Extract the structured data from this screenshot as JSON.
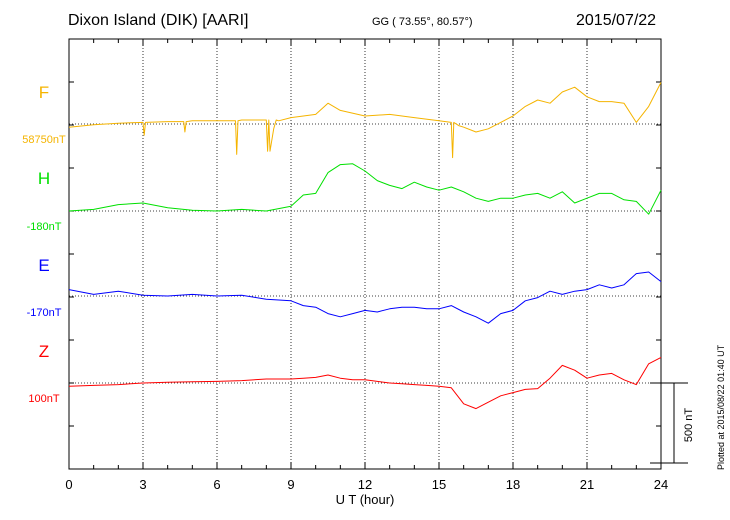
{
  "header": {
    "station": "Dixon Island (DIK)  [AARI]",
    "coords": "GG ( 73.55°,  80.57°)",
    "date": "2015/07/22"
  },
  "plotted_note": "Plotted at 2015/08/22 01:40 UT",
  "colors": {
    "F": "#f5b400",
    "H": "#00e000",
    "E": "#0000ff",
    "Z": "#ff0000",
    "axis": "#000000"
  },
  "chart_data": {
    "type": "line",
    "title": "",
    "xlabel": "U T (hour)",
    "ylabel": "",
    "xlim": [
      0,
      24
    ],
    "x_ticks": [
      "0",
      "3",
      "6",
      "9",
      "12",
      "15",
      "18",
      "21",
      "24"
    ],
    "scale_bar": {
      "label": "500 nT",
      "value_nT": 500
    },
    "series": [
      {
        "name": "F",
        "baseline_label": "58750nT",
        "baseline_nT": 58750,
        "x": [
          0,
          1,
          2,
          3,
          3.05,
          3.1,
          4,
          4.65,
          4.7,
          4.75,
          5,
          6,
          6.75,
          6.8,
          6.85,
          7,
          8,
          8.05,
          8.1,
          8.15,
          8.3,
          8.4,
          8.5,
          9,
          10,
          10.5,
          11,
          12,
          13,
          14,
          15,
          15.5,
          15.55,
          15.6,
          15.8,
          16,
          16.5,
          17,
          17.5,
          18,
          18.5,
          19,
          19.5,
          20,
          20.5,
          21,
          21.5,
          22,
          22.5,
          23,
          23.5,
          24
        ],
        "y": [
          58730,
          58745,
          58755,
          58760,
          58680,
          58760,
          58765,
          58765,
          58700,
          58765,
          58770,
          58770,
          58770,
          58560,
          58770,
          58775,
          58775,
          58580,
          58775,
          58580,
          58720,
          58775,
          58770,
          58790,
          58810,
          58880,
          58835,
          58800,
          58810,
          58790,
          58770,
          58760,
          58540,
          58760,
          58740,
          58730,
          58700,
          58720,
          58760,
          58800,
          58860,
          58900,
          58880,
          58950,
          58980,
          58920,
          58890,
          58890,
          58880,
          58760,
          58860,
          59010
        ]
      },
      {
        "name": "H",
        "baseline_label": "-180nT",
        "baseline_nT": -180,
        "x": [
          0,
          1,
          2,
          3,
          4,
          5,
          6,
          7,
          8,
          9,
          9.5,
          10,
          10.5,
          11,
          11.5,
          12,
          12.5,
          13,
          13.5,
          14,
          14.5,
          15,
          15.5,
          16,
          16.5,
          17,
          17.5,
          18,
          18.5,
          19,
          19.5,
          20,
          20.5,
          21,
          21.5,
          22,
          22.5,
          23,
          23.5,
          24
        ],
        "y": [
          -180,
          -170,
          -140,
          -130,
          -160,
          -175,
          -180,
          -170,
          -180,
          -150,
          -80,
          -70,
          60,
          110,
          115,
          70,
          10,
          -20,
          -40,
          0,
          -30,
          -50,
          -30,
          -60,
          -100,
          -120,
          -100,
          -100,
          -80,
          -70,
          -100,
          -60,
          -130,
          -100,
          -70,
          -70,
          -110,
          -120,
          -200,
          -50
        ]
      },
      {
        "name": "E",
        "baseline_label": "-170nT",
        "baseline_nT": -170,
        "x": [
          0,
          1,
          2,
          3,
          4,
          5,
          6,
          7,
          8,
          9,
          9.5,
          10,
          10.5,
          11,
          11.5,
          12,
          12.5,
          13,
          13.5,
          14,
          14.5,
          15,
          15.5,
          16,
          16.5,
          17,
          17.5,
          18,
          18.5,
          19,
          19.5,
          20,
          20.5,
          21,
          21.5,
          22,
          22.5,
          23,
          23.5,
          24
        ],
        "y": [
          -130,
          -160,
          -140,
          -165,
          -170,
          -160,
          -170,
          -165,
          -190,
          -200,
          -230,
          -240,
          -280,
          -300,
          -280,
          -260,
          -270,
          -250,
          -240,
          -240,
          -250,
          -250,
          -230,
          -270,
          -300,
          -340,
          -280,
          -260,
          -200,
          -180,
          -140,
          -160,
          -140,
          -130,
          -100,
          -120,
          -100,
          -30,
          -20,
          -80
        ]
      },
      {
        "name": "Z",
        "baseline_label": "100nT",
        "baseline_nT": 100,
        "x": [
          0,
          1,
          2,
          3,
          4,
          5,
          6,
          7,
          8,
          9,
          9.5,
          10,
          10.5,
          11,
          11.5,
          12,
          12.5,
          13,
          13.5,
          14,
          14.5,
          15,
          15.5,
          16,
          16.5,
          17,
          17.5,
          18,
          18.5,
          19,
          19.5,
          20,
          20.5,
          21,
          21.5,
          22,
          22.5,
          23,
          23.5,
          24
        ],
        "y": [
          80,
          85,
          90,
          100,
          105,
          108,
          110,
          115,
          125,
          125,
          130,
          135,
          150,
          130,
          120,
          120,
          110,
          100,
          95,
          90,
          85,
          80,
          70,
          -30,
          -60,
          -20,
          20,
          40,
          60,
          65,
          130,
          210,
          180,
          130,
          150,
          160,
          120,
          90,
          220,
          260
        ]
      }
    ]
  }
}
